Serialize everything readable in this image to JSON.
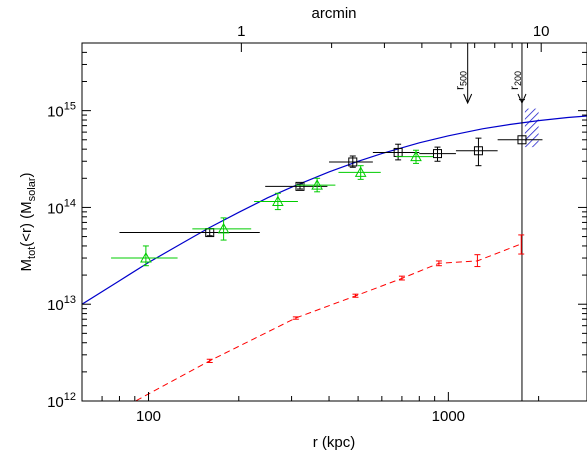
{
  "chart_data": {
    "type": "scatter",
    "xlabel": "r (kpc)",
    "ylabel_main": "M",
    "ylabel_sub": "tot",
    "ylabel_mid": "(<r) (M",
    "ylabel_sub2": "solar",
    "ylabel_end": ")",
    "top_axis_label": "arcmin",
    "xscale": "log",
    "yscale": "log",
    "xlim": [
      60,
      2900
    ],
    "ylim": [
      1000000000000.0,
      5000000000000000.0
    ],
    "x_ticks": [
      {
        "value": 100,
        "label": "100"
      },
      {
        "value": 1000,
        "label": "1000"
      }
    ],
    "y_ticks": [
      {
        "value": 1000000000000.0,
        "base": "10",
        "exp": "12"
      },
      {
        "value": 10000000000000.0,
        "base": "10",
        "exp": "13"
      },
      {
        "value": 100000000000000.0,
        "base": "10",
        "exp": "14"
      },
      {
        "value": 1000000000000000.0,
        "base": "10",
        "exp": "15"
      }
    ],
    "top_ticks": [
      {
        "r": 204,
        "label": "1"
      },
      {
        "r": 2040,
        "label": "10"
      }
    ],
    "markers": [
      {
        "r": 1160,
        "label": "r",
        "sub": "500"
      },
      {
        "r": 1760,
        "label": "r",
        "sub": "200"
      }
    ],
    "series": [
      {
        "kind": "model_curve",
        "color": "#0000cc",
        "x": [
          60,
          80,
          100,
          130,
          160,
          200,
          250,
          300,
          400,
          500,
          600,
          800,
          1000,
          1300,
          1600,
          2000,
          2500,
          2900
        ],
        "y": [
          10000000000000.0,
          17500000000000.0,
          27000000000000.0,
          43000000000000.0,
          62000000000000.0,
          89000000000000.0,
          126000000000000.0,
          162000000000000.0,
          233000000000000.0,
          300000000000000.0,
          360000000000000.0,
          465000000000000.0,
          550000000000000.0,
          650000000000000.0,
          720000000000000.0,
          790000000000000.0,
          850000000000000.0,
          880000000000000.0
        ]
      },
      {
        "kind": "squares",
        "color": "#000000",
        "points": [
          {
            "x": 160,
            "y": 55000000000000.0,
            "xlo": 80,
            "xhi": 235,
            "ylo": 51000000000000.0,
            "yhi": 60000000000000.0
          },
          {
            "x": 320,
            "y": 165000000000000.0,
            "xlo": 245,
            "xhi": 395,
            "ylo": 155000000000000.0,
            "yhi": 175000000000000.0
          },
          {
            "x": 480,
            "y": 295000000000000.0,
            "xlo": 400,
            "xhi": 560,
            "ylo": 260000000000000.0,
            "yhi": 340000000000000.0
          },
          {
            "x": 680,
            "y": 370000000000000.0,
            "xlo": 560,
            "xhi": 800,
            "ylo": 310000000000000.0,
            "yhi": 450000000000000.0
          },
          {
            "x": 920,
            "y": 360000000000000.0,
            "xlo": 800,
            "xhi": 1060,
            "ylo": 300000000000000.0,
            "yhi": 420000000000000.0
          },
          {
            "x": 1260,
            "y": 385000000000000.0,
            "xlo": 1060,
            "xhi": 1460,
            "ylo": 270000000000000.0,
            "yhi": 520000000000000.0
          },
          {
            "x": 1760,
            "y": 500000000000000.0,
            "xlo": 1460,
            "xhi": 2060,
            "ylo": 1000000000000.0,
            "yhi": 1300000000000000.0
          }
        ]
      },
      {
        "kind": "triangles",
        "color": "#00cc00",
        "points": [
          {
            "x": 98,
            "y": 30000000000000.0,
            "xlo": 75,
            "xhi": 125,
            "ylo": 25000000000000.0,
            "yhi": 40000000000000.0
          },
          {
            "x": 178,
            "y": 60000000000000.0,
            "xlo": 140,
            "xhi": 220,
            "ylo": 46000000000000.0,
            "yhi": 78000000000000.0
          },
          {
            "x": 270,
            "y": 115000000000000.0,
            "xlo": 225,
            "xhi": 315,
            "ylo": 95000000000000.0,
            "yhi": 140000000000000.0
          },
          {
            "x": 365,
            "y": 170000000000000.0,
            "xlo": 310,
            "xhi": 420,
            "ylo": 145000000000000.0,
            "yhi": 200000000000000.0
          },
          {
            "x": 510,
            "y": 230000000000000.0,
            "xlo": 430,
            "xhi": 595,
            "ylo": 195000000000000.0,
            "yhi": 270000000000000.0
          },
          {
            "x": 780,
            "y": 335000000000000.0,
            "xlo": 670,
            "xhi": 890,
            "ylo": 285000000000000.0,
            "yhi": 390000000000000.0
          }
        ]
      },
      {
        "kind": "dashed_profile",
        "color": "#ff0000",
        "x": [
          85,
          160,
          310,
          490,
          700,
          930,
          1250,
          1750
        ],
        "y": [
          900000000000.0,
          2600000000000.0,
          7200000000000.0,
          12200000000000.0,
          18500000000000.0,
          26500000000000.0,
          28000000000000.0,
          42000000000000.0
        ],
        "yerr_lo": [
          850000000000.0,
          2500000000000.0,
          7000000000000.0,
          11800000000000.0,
          17800000000000.0,
          25000000000000.0,
          24500000000000.0,
          33000000000000.0
        ],
        "yerr_hi": [
          950000000000.0,
          2700000000000.0,
          7400000000000.0,
          12700000000000.0,
          19500000000000.0,
          28000000000000.0,
          32500000000000.0,
          52000000000000.0
        ]
      }
    ],
    "hatched_region": {
      "x0": 1800,
      "x1": 2000,
      "y0": 420000000000000.0,
      "y1": 1050000000000000.0,
      "color": "#2222cc"
    }
  }
}
